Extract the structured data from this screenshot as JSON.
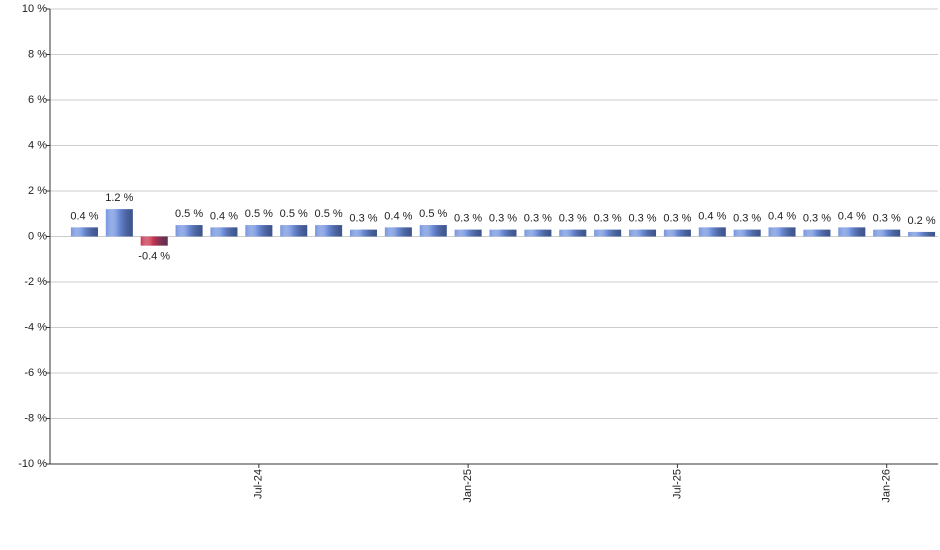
{
  "chart_data": {
    "type": "bar",
    "categories": [
      null,
      null,
      null,
      null,
      null,
      "Jul-24",
      null,
      null,
      null,
      null,
      null,
      "Jan-25",
      null,
      null,
      null,
      null,
      null,
      "Jul-25",
      null,
      null,
      null,
      null,
      null,
      "Jan-26",
      null
    ],
    "values": [
      0.4,
      1.2,
      -0.4,
      0.5,
      0.4,
      0.5,
      0.5,
      0.5,
      0.3,
      0.4,
      0.5,
      0.3,
      0.3,
      0.3,
      0.3,
      0.3,
      0.3,
      0.3,
      0.4,
      0.3,
      0.4,
      0.3,
      0.4,
      0.3,
      0.2
    ],
    "value_labels": [
      "0.4 %",
      "1.2 %",
      "-0.4 %",
      "0.5 %",
      "0.4 %",
      "0.5 %",
      "0.5 %",
      "0.5 %",
      "0.3 %",
      "0.4 %",
      "0.5 %",
      "0.3 %",
      "0.3 %",
      "0.3 %",
      "0.3 %",
      "0.3 %",
      "0.3 %",
      "0.3 %",
      "0.4 %",
      "0.3 %",
      "0.4 %",
      "0.3 %",
      "0.4 %",
      "0.3 %",
      "0.2 %"
    ],
    "color": "#7393dd",
    "negative_color": "#c8354f",
    "ylim": [
      -10,
      10
    ],
    "yticks": [
      {
        "value": -10,
        "label": "-10 %"
      },
      {
        "value": -8,
        "label": "-8 %"
      },
      {
        "value": -6,
        "label": "-6 %"
      },
      {
        "value": -4,
        "label": "-4 %"
      },
      {
        "value": -2,
        "label": "-2 %"
      },
      {
        "value": 0,
        "label": "0 %"
      },
      {
        "value": 2,
        "label": "2 %"
      },
      {
        "value": 4,
        "label": "4 %"
      },
      {
        "value": 6,
        "label": "6 %"
      },
      {
        "value": 8,
        "label": "8 %"
      },
      {
        "value": 10,
        "label": "10 %"
      }
    ],
    "grid": true
  }
}
